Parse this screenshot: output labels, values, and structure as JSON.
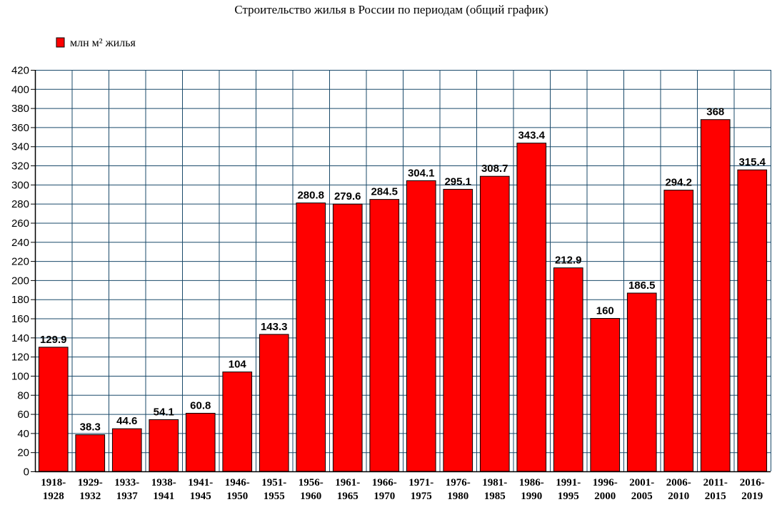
{
  "chart_data": {
    "type": "bar",
    "title": "Строительство жилья в России по периодам (общий график)",
    "legend": {
      "label": "млн м² жилья",
      "placement": "top-left"
    },
    "categories": [
      [
        "1918-",
        "1928"
      ],
      [
        "1929-",
        "1932"
      ],
      [
        "1933-",
        "1937"
      ],
      [
        "1938-",
        "1941"
      ],
      [
        "1941-",
        "1945"
      ],
      [
        "1946-",
        "1950"
      ],
      [
        "1951-",
        "1955"
      ],
      [
        "1956-",
        "1960"
      ],
      [
        "1961-",
        "1965"
      ],
      [
        "1966-",
        "1970"
      ],
      [
        "1971-",
        "1975"
      ],
      [
        "1976-",
        "1980"
      ],
      [
        "1981-",
        "1985"
      ],
      [
        "1986-",
        "1990"
      ],
      [
        "1991-",
        "1995"
      ],
      [
        "1996-",
        "2000"
      ],
      [
        "2001-",
        "2005"
      ],
      [
        "2006-",
        "2010"
      ],
      [
        "2011-",
        "2015"
      ],
      [
        "2016-",
        "2019"
      ]
    ],
    "series": [
      {
        "name": "млн м² жилья",
        "values": [
          129.9,
          38.3,
          44.6,
          54.1,
          60.8,
          104,
          143.3,
          280.8,
          279.6,
          284.5,
          304.1,
          295.1,
          308.7,
          343.4,
          212.9,
          160,
          186.5,
          294.2,
          368,
          315.4
        ],
        "labels": [
          "129.9",
          "38.3",
          "44.6",
          "54.1",
          "60.8",
          "104",
          "143.3",
          "280.8",
          "279.6",
          "284.5",
          "304.1",
          "295.1",
          "308.7",
          "343.4",
          "212.9",
          "160",
          "186.5",
          "294.2",
          "368",
          "315.4"
        ],
        "color": "#ff0000"
      }
    ],
    "ylim": [
      0,
      420
    ],
    "yticks": [
      0,
      20,
      40,
      60,
      80,
      100,
      120,
      140,
      160,
      180,
      200,
      220,
      240,
      260,
      280,
      300,
      320,
      340,
      360,
      380,
      400,
      420
    ],
    "grid": true,
    "colors": {
      "bar": "#ff0000",
      "bar_edge": "#000000",
      "grid": "#1a4a6a"
    }
  }
}
